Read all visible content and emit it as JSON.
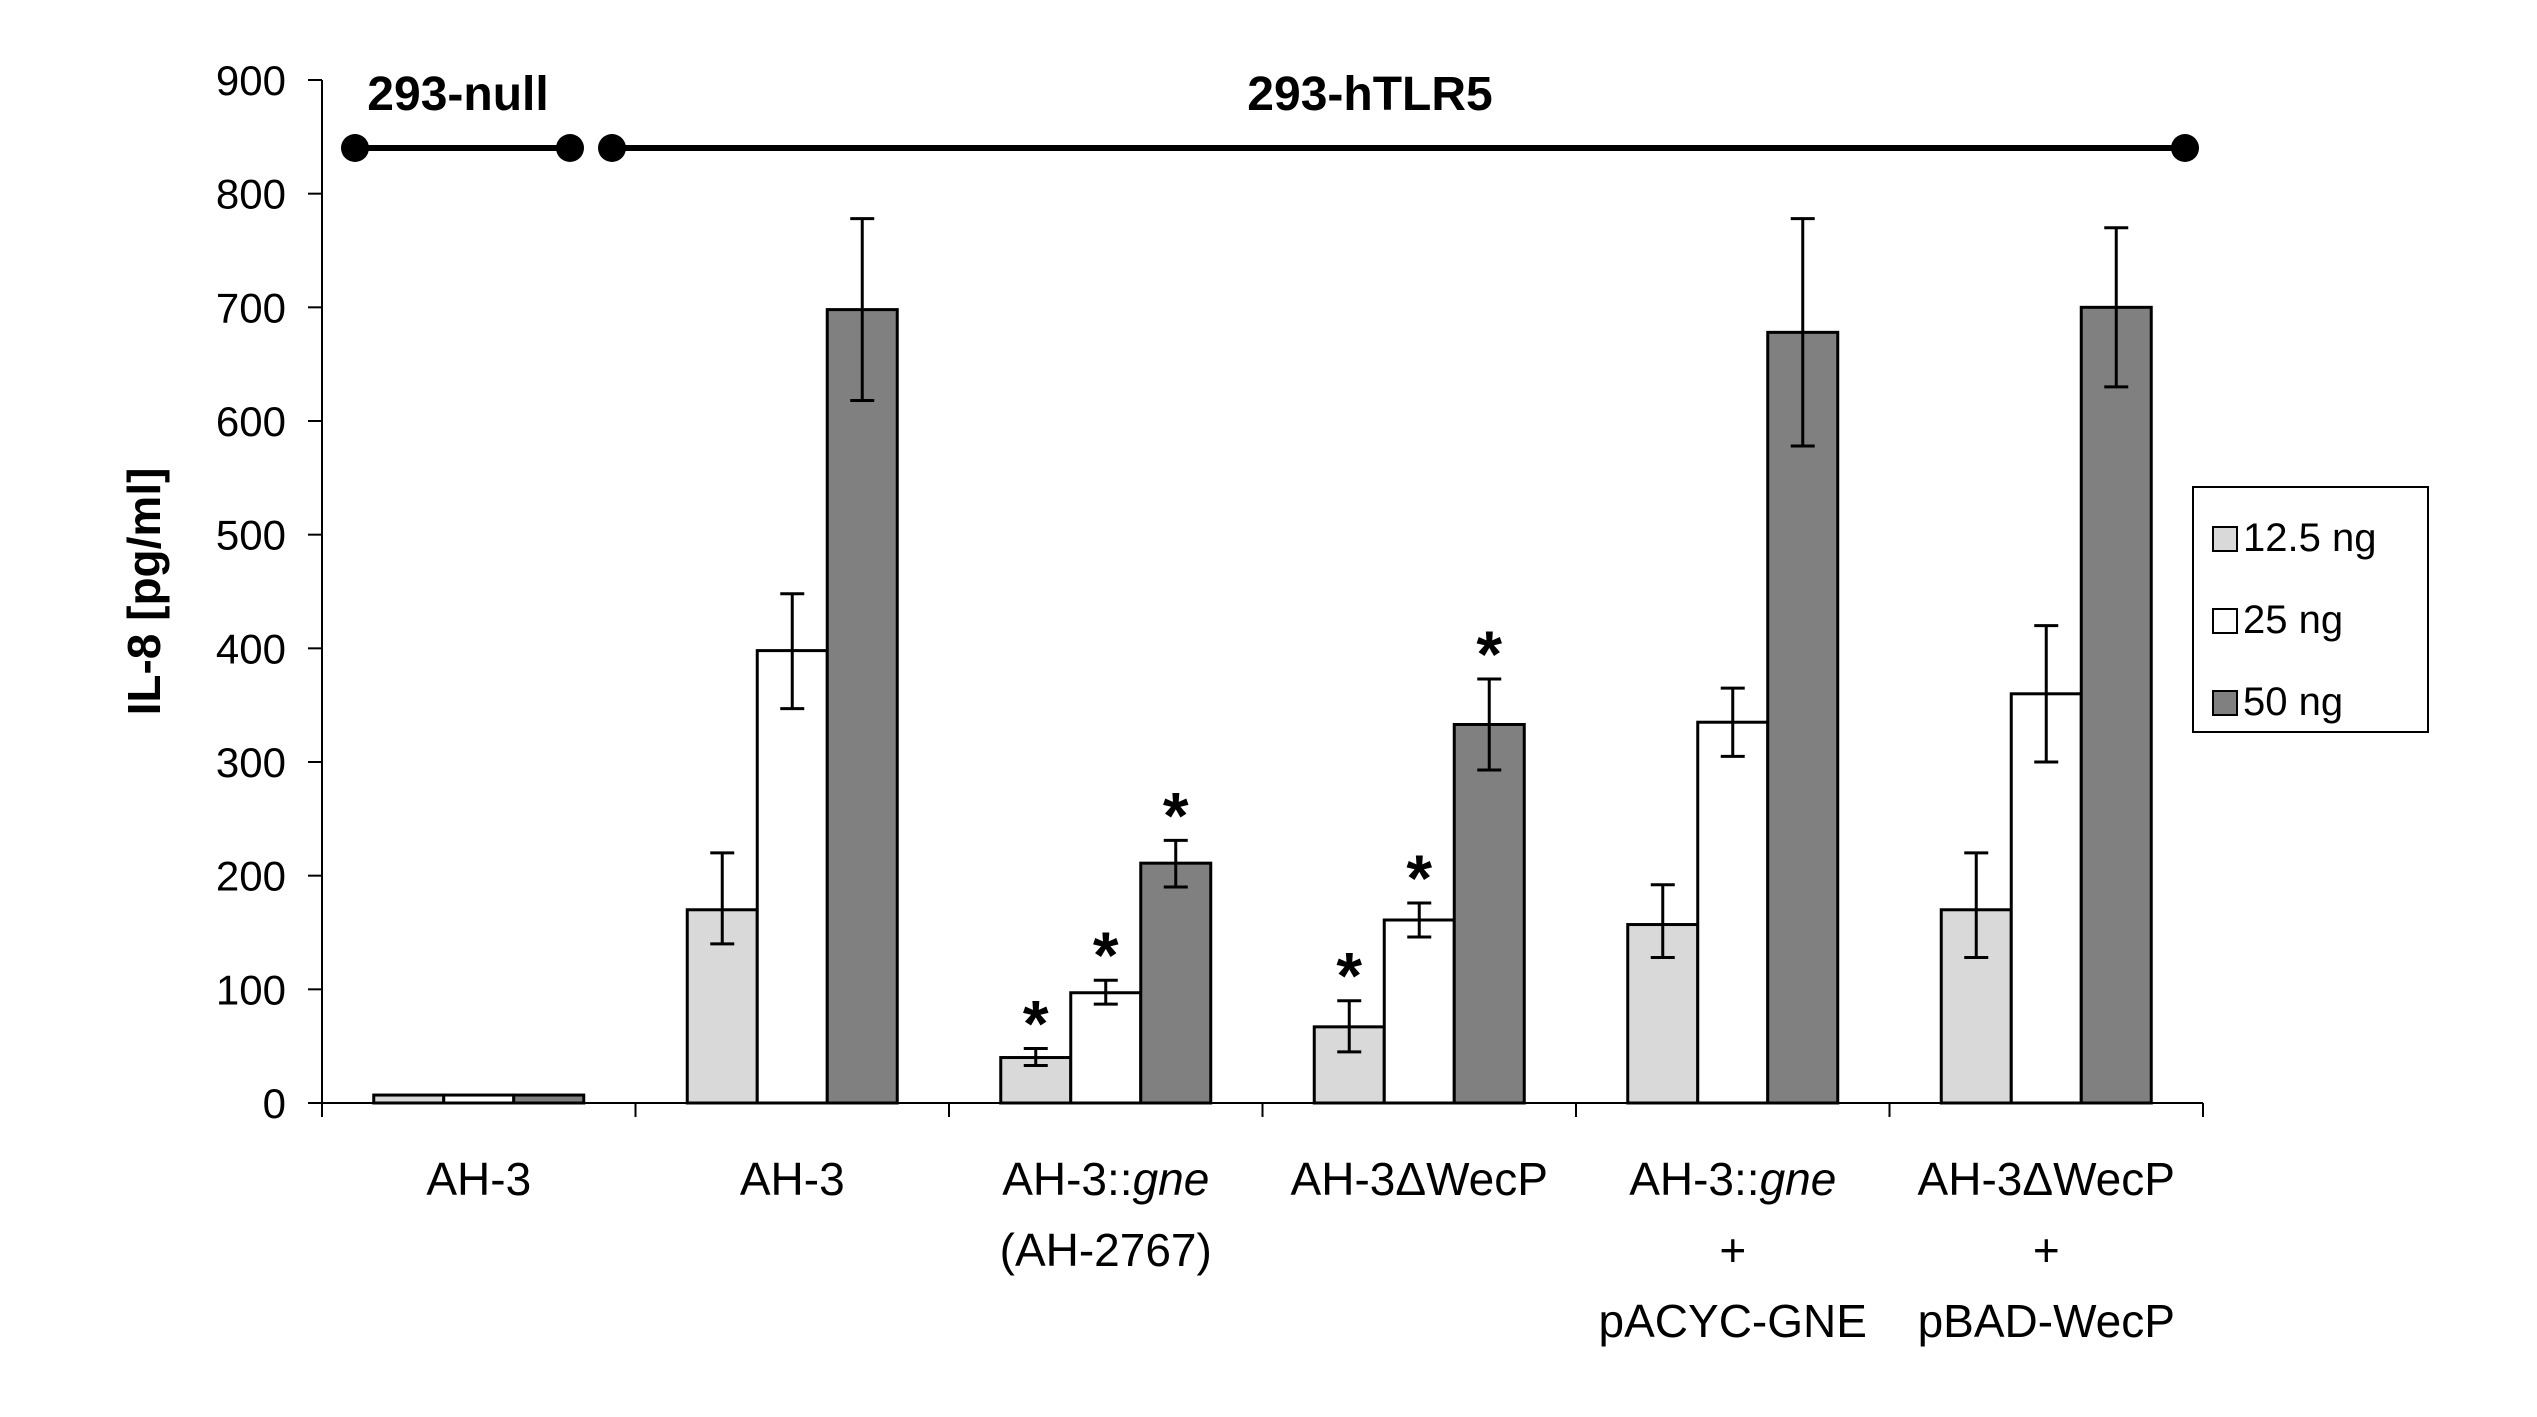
{
  "chart_data": {
    "type": "bar",
    "title": "",
    "xlabel": "",
    "ylabel": "IL-8 [pg/ml]",
    "ylim": [
      0,
      900
    ],
    "yticks": [
      0,
      100,
      200,
      300,
      400,
      500,
      600,
      700,
      800,
      900
    ],
    "grid": false,
    "legend_position": "right",
    "categories": [
      {
        "lines": [
          [
            "AH-3"
          ]
        ]
      },
      {
        "lines": [
          [
            "AH-3"
          ]
        ]
      },
      {
        "lines": [
          [
            "AH-3::",
            "gne"
          ],
          [
            "(AH-2767)"
          ]
        ]
      },
      {
        "lines": [
          [
            "AH-3ΔWecP"
          ]
        ]
      },
      {
        "lines": [
          [
            "AH-3::",
            "gne"
          ],
          [
            "+"
          ],
          [
            "pACYC-GNE"
          ]
        ]
      },
      {
        "lines": [
          [
            "AH-3ΔWecP"
          ],
          [
            "+"
          ],
          [
            "pBAD-WecP"
          ]
        ]
      }
    ],
    "series": [
      {
        "name": "12.5 ng",
        "color": "#d9d9d9",
        "values": [
          7,
          170,
          40,
          67,
          157,
          170
        ],
        "error_low": [
          7,
          140,
          33,
          45,
          128,
          128
        ],
        "error_high": [
          7,
          220,
          48,
          90,
          192,
          220
        ],
        "significant": [
          false,
          false,
          true,
          true,
          false,
          false
        ]
      },
      {
        "name": "25 ng",
        "color": "#ffffff",
        "values": [
          7,
          398,
          97,
          161,
          335,
          360
        ],
        "error_low": [
          7,
          347,
          87,
          146,
          305,
          300
        ],
        "error_high": [
          7,
          448,
          108,
          176,
          365,
          420
        ],
        "significant": [
          false,
          false,
          true,
          true,
          false,
          false
        ]
      },
      {
        "name": "50 ng",
        "color": "#808080",
        "values": [
          7,
          698,
          211,
          333,
          678,
          700
        ],
        "error_low": [
          7,
          618,
          190,
          293,
          578,
          630
        ],
        "error_high": [
          7,
          778,
          231,
          373,
          778,
          770
        ],
        "significant": [
          false,
          false,
          true,
          true,
          false,
          false
        ]
      }
    ],
    "star_symbol": "*",
    "group_brackets": [
      {
        "label": "293-null",
        "from_category": 0,
        "to_category": 0
      },
      {
        "label": "293-hTLR5",
        "from_category": 1,
        "to_category": 5
      }
    ]
  }
}
